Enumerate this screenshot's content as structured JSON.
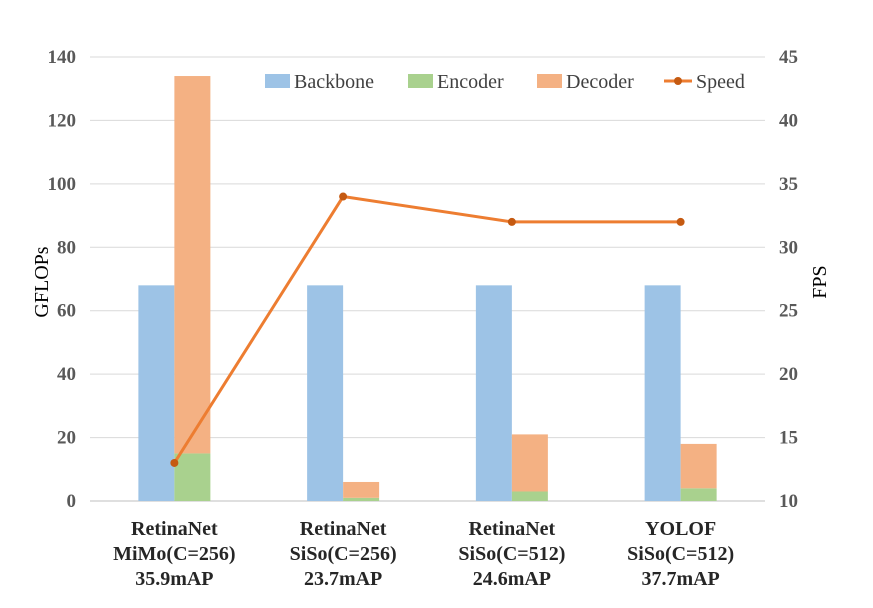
{
  "chart_data": {
    "type": "bar",
    "stacking": "backbone beside stacked encoder+decoder; speed line on secondary axis",
    "categories": [
      [
        "RetinaNet",
        "MiMo(C=256)",
        "35.9mAP"
      ],
      [
        "RetinaNet",
        "SiSo(C=256)",
        "23.7mAP"
      ],
      [
        "RetinaNet",
        "SiSo(C=512)",
        "24.6mAP"
      ],
      [
        "YOLOF",
        "SiSo(C=512)",
        "37.7mAP"
      ]
    ],
    "series": [
      {
        "name": "Backbone",
        "values": [
          68,
          68,
          68,
          68
        ],
        "color": "#9DC3E6"
      },
      {
        "name": "Encoder",
        "values": [
          15,
          1,
          3,
          4
        ],
        "color": "#A9D18E"
      },
      {
        "name": "Decoder",
        "values": [
          119,
          5,
          18,
          14
        ],
        "color": "#F4B183"
      },
      {
        "name": "Speed",
        "values": [
          13,
          34,
          32,
          32
        ],
        "color": "#C55A11",
        "axis": "right",
        "kind": "line"
      }
    ],
    "ylabel": "GFLOPs",
    "ylabel_right": "FPS",
    "ylim": [
      0,
      140
    ],
    "yticks": [
      0,
      20,
      40,
      60,
      80,
      100,
      120,
      140
    ],
    "ylim_right": [
      10,
      45
    ],
    "yticks_right": [
      10,
      15,
      20,
      25,
      30,
      35,
      40,
      45
    ],
    "grid": true,
    "legend_position": "top-right"
  }
}
